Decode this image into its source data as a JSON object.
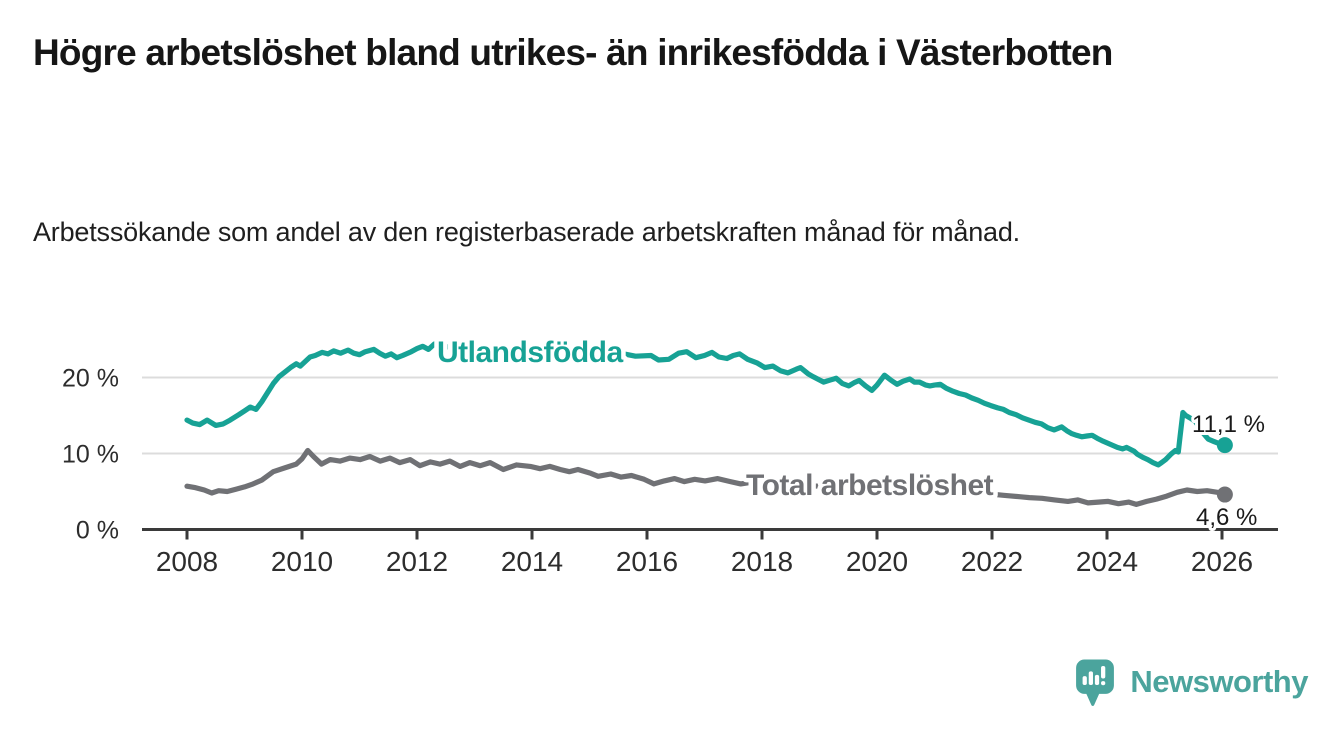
{
  "header": {
    "title": "Högre arbetslöshet bland utrikes- än inrikesfödda i Västerbotten",
    "subtitle": "Arbetssökande som andel av den registerbaserade arbetskraften månad för månad."
  },
  "footer": {
    "brand": "Newsworthy",
    "brand_color": "#4ba49d"
  },
  "chart_data": {
    "type": "line",
    "title": "Högre arbetslöshet bland utrikes- än inrikesfödda i Västerbotten",
    "subtitle": "Arbetssökande som andel av den registerbaserade arbetskraften månad för månad.",
    "x_axis": {
      "ticks": [
        2008,
        2010,
        2012,
        2014,
        2016,
        2018,
        2020,
        2022,
        2024,
        2026
      ],
      "range": [
        2007.2,
        2026.95
      ],
      "grid": false
    },
    "y_axis": {
      "unit": "%",
      "range": [
        0,
        26.5
      ],
      "ticks": [
        {
          "value": 0,
          "label": "0 %"
        },
        {
          "value": 10,
          "label": "10 %"
        },
        {
          "value": 20,
          "label": "20 %"
        }
      ],
      "grid": true
    },
    "legend_position": "inline-labels",
    "series": [
      {
        "name": "Utlandsfödda",
        "color": "#17a295",
        "end_label": "11,1 %",
        "end_value": 11.1,
        "points": [
          [
            2008.0,
            14.4
          ],
          [
            2008.1,
            14.0
          ],
          [
            2008.22,
            13.8
          ],
          [
            2008.35,
            14.4
          ],
          [
            2008.5,
            13.7
          ],
          [
            2008.63,
            13.9
          ],
          [
            2008.75,
            14.4
          ],
          [
            2008.9,
            15.1
          ],
          [
            2009.0,
            15.6
          ],
          [
            2009.1,
            16.1
          ],
          [
            2009.2,
            15.8
          ],
          [
            2009.3,
            16.8
          ],
          [
            2009.4,
            18.0
          ],
          [
            2009.5,
            19.2
          ],
          [
            2009.6,
            20.1
          ],
          [
            2009.7,
            20.7
          ],
          [
            2009.8,
            21.3
          ],
          [
            2009.9,
            21.8
          ],
          [
            2009.97,
            21.5
          ],
          [
            2010.14,
            22.7
          ],
          [
            2010.23,
            22.9
          ],
          [
            2010.35,
            23.3
          ],
          [
            2010.45,
            23.1
          ],
          [
            2010.55,
            23.5
          ],
          [
            2010.67,
            23.2
          ],
          [
            2010.8,
            23.6
          ],
          [
            2010.9,
            23.2
          ],
          [
            2011.0,
            23.0
          ],
          [
            2011.1,
            23.4
          ],
          [
            2011.25,
            23.7
          ],
          [
            2011.35,
            23.2
          ],
          [
            2011.45,
            22.8
          ],
          [
            2011.55,
            23.1
          ],
          [
            2011.65,
            22.6
          ],
          [
            2011.75,
            22.9
          ],
          [
            2011.9,
            23.4
          ],
          [
            2012.0,
            23.8
          ],
          [
            2012.1,
            24.1
          ],
          [
            2012.2,
            23.7
          ],
          [
            2012.3,
            24.4
          ],
          [
            2012.4,
            23.9
          ],
          [
            2012.6,
            24.1
          ],
          [
            2012.8,
            23.6
          ],
          [
            2013.0,
            23.8
          ],
          [
            2013.2,
            24.1
          ],
          [
            2013.4,
            23.6
          ],
          [
            2013.6,
            23.9
          ],
          [
            2013.8,
            23.5
          ],
          [
            2014.0,
            23.7
          ],
          [
            2014.2,
            23.3
          ],
          [
            2014.4,
            23.6
          ],
          [
            2014.6,
            23.2
          ],
          [
            2014.8,
            23.4
          ],
          [
            2015.0,
            23.1
          ],
          [
            2015.2,
            23.3
          ],
          [
            2015.4,
            22.9
          ],
          [
            2015.6,
            23.1
          ],
          [
            2015.8,
            22.8
          ],
          [
            2016.07,
            22.9
          ],
          [
            2016.2,
            22.3
          ],
          [
            2016.38,
            22.4
          ],
          [
            2016.55,
            23.2
          ],
          [
            2016.69,
            23.4
          ],
          [
            2016.85,
            22.6
          ],
          [
            2017.0,
            22.9
          ],
          [
            2017.13,
            23.3
          ],
          [
            2017.25,
            22.7
          ],
          [
            2017.39,
            22.5
          ],
          [
            2017.5,
            22.9
          ],
          [
            2017.61,
            23.1
          ],
          [
            2017.75,
            22.4
          ],
          [
            2017.92,
            21.9
          ],
          [
            2018.05,
            21.3
          ],
          [
            2018.19,
            21.5
          ],
          [
            2018.32,
            20.9
          ],
          [
            2018.45,
            20.6
          ],
          [
            2018.6,
            21.1
          ],
          [
            2018.67,
            21.3
          ],
          [
            2018.8,
            20.5
          ],
          [
            2018.89,
            20.1
          ],
          [
            2019.07,
            19.4
          ],
          [
            2019.2,
            19.7
          ],
          [
            2019.29,
            19.9
          ],
          [
            2019.4,
            19.2
          ],
          [
            2019.51,
            18.9
          ],
          [
            2019.6,
            19.3
          ],
          [
            2019.69,
            19.6
          ],
          [
            2019.8,
            18.9
          ],
          [
            2019.91,
            18.3
          ],
          [
            2020.0,
            19.0
          ],
          [
            2020.13,
            20.3
          ],
          [
            2020.25,
            19.6
          ],
          [
            2020.35,
            19.1
          ],
          [
            2020.45,
            19.5
          ],
          [
            2020.57,
            19.8
          ],
          [
            2020.65,
            19.4
          ],
          [
            2020.74,
            19.4
          ],
          [
            2020.85,
            19.0
          ],
          [
            2020.92,
            18.9
          ],
          [
            2021.0,
            19.0
          ],
          [
            2021.1,
            19.1
          ],
          [
            2021.2,
            18.6
          ],
          [
            2021.32,
            18.2
          ],
          [
            2021.43,
            17.9
          ],
          [
            2021.54,
            17.7
          ],
          [
            2021.65,
            17.3
          ],
          [
            2021.76,
            17.0
          ],
          [
            2021.87,
            16.6
          ],
          [
            2021.98,
            16.3
          ],
          [
            2022.1,
            16.0
          ],
          [
            2022.2,
            15.8
          ],
          [
            2022.3,
            15.4
          ],
          [
            2022.42,
            15.1
          ],
          [
            2022.53,
            14.7
          ],
          [
            2022.64,
            14.4
          ],
          [
            2022.75,
            14.1
          ],
          [
            2022.86,
            13.9
          ],
          [
            2022.97,
            13.4
          ],
          [
            2023.08,
            13.1
          ],
          [
            2023.21,
            13.5
          ],
          [
            2023.3,
            13.0
          ],
          [
            2023.39,
            12.6
          ],
          [
            2023.47,
            12.4
          ],
          [
            2023.56,
            12.2
          ],
          [
            2023.65,
            12.3
          ],
          [
            2023.74,
            12.4
          ],
          [
            2023.83,
            12.0
          ],
          [
            2023.91,
            11.7
          ],
          [
            2024.0,
            11.4
          ],
          [
            2024.09,
            11.1
          ],
          [
            2024.18,
            10.8
          ],
          [
            2024.27,
            10.6
          ],
          [
            2024.34,
            10.8
          ],
          [
            2024.47,
            10.3
          ],
          [
            2024.53,
            9.9
          ],
          [
            2024.62,
            9.5
          ],
          [
            2024.71,
            9.2
          ],
          [
            2024.8,
            8.8
          ],
          [
            2024.89,
            8.5
          ],
          [
            2024.95,
            8.8
          ],
          [
            2025.02,
            9.2
          ],
          [
            2025.11,
            9.9
          ],
          [
            2025.19,
            10.4
          ],
          [
            2025.24,
            10.2
          ],
          [
            2025.27,
            12.2
          ],
          [
            2025.32,
            15.4
          ],
          [
            2025.37,
            15.0
          ],
          [
            2025.46,
            14.6
          ],
          [
            2025.54,
            14.2
          ],
          [
            2025.6,
            13.5
          ],
          [
            2025.67,
            12.7
          ],
          [
            2025.76,
            11.9
          ],
          [
            2025.85,
            11.6
          ],
          [
            2025.95,
            11.3
          ],
          [
            2026.05,
            11.1
          ]
        ]
      },
      {
        "name": "Total arbetslöshet",
        "color": "#707175",
        "end_label": "4,6 %",
        "end_value": 4.6,
        "points": [
          [
            2008.0,
            5.7
          ],
          [
            2008.15,
            5.5
          ],
          [
            2008.3,
            5.2
          ],
          [
            2008.43,
            4.8
          ],
          [
            2008.55,
            5.1
          ],
          [
            2008.7,
            5.0
          ],
          [
            2008.85,
            5.3
          ],
          [
            2009.0,
            5.6
          ],
          [
            2009.15,
            6.0
          ],
          [
            2009.3,
            6.5
          ],
          [
            2009.5,
            7.6
          ],
          [
            2009.7,
            8.1
          ],
          [
            2009.9,
            8.6
          ],
          [
            2010.0,
            9.3
          ],
          [
            2010.1,
            10.4
          ],
          [
            2010.2,
            9.6
          ],
          [
            2010.34,
            8.6
          ],
          [
            2010.49,
            9.2
          ],
          [
            2010.66,
            9.0
          ],
          [
            2010.83,
            9.4
          ],
          [
            2011.01,
            9.2
          ],
          [
            2011.18,
            9.6
          ],
          [
            2011.36,
            9.0
          ],
          [
            2011.53,
            9.4
          ],
          [
            2011.7,
            8.8
          ],
          [
            2011.88,
            9.2
          ],
          [
            2012.05,
            8.4
          ],
          [
            2012.23,
            8.9
          ],
          [
            2012.4,
            8.6
          ],
          [
            2012.57,
            9.0
          ],
          [
            2012.75,
            8.3
          ],
          [
            2012.92,
            8.8
          ],
          [
            2013.1,
            8.4
          ],
          [
            2013.27,
            8.8
          ],
          [
            2013.5,
            7.9
          ],
          [
            2013.73,
            8.5
          ],
          [
            2013.97,
            8.3
          ],
          [
            2014.14,
            8.0
          ],
          [
            2014.31,
            8.3
          ],
          [
            2014.49,
            7.9
          ],
          [
            2014.65,
            7.6
          ],
          [
            2014.8,
            7.9
          ],
          [
            2015.02,
            7.4
          ],
          [
            2015.15,
            7.0
          ],
          [
            2015.37,
            7.3
          ],
          [
            2015.55,
            6.9
          ],
          [
            2015.73,
            7.1
          ],
          [
            2015.95,
            6.6
          ],
          [
            2016.12,
            6.0
          ],
          [
            2016.3,
            6.4
          ],
          [
            2016.48,
            6.7
          ],
          [
            2016.65,
            6.3
          ],
          [
            2016.83,
            6.6
          ],
          [
            2017.01,
            6.4
          ],
          [
            2017.23,
            6.7
          ],
          [
            2017.45,
            6.3
          ],
          [
            2017.63,
            6.0
          ],
          [
            2017.8,
            6.2
          ],
          [
            2018.0,
            6.0
          ],
          [
            2018.3,
            6.2
          ],
          [
            2018.6,
            5.8
          ],
          [
            2019.0,
            5.7
          ],
          [
            2019.4,
            5.5
          ],
          [
            2019.8,
            5.3
          ],
          [
            2020.1,
            5.8
          ],
          [
            2020.4,
            6.3
          ],
          [
            2020.7,
            6.0
          ],
          [
            2021.0,
            5.6
          ],
          [
            2021.4,
            5.2
          ],
          [
            2021.8,
            4.8
          ],
          [
            2022.2,
            4.5
          ],
          [
            2022.5,
            4.3
          ],
          [
            2022.65,
            4.2
          ],
          [
            2022.87,
            4.1
          ],
          [
            2023.09,
            3.9
          ],
          [
            2023.32,
            3.7
          ],
          [
            2023.49,
            3.9
          ],
          [
            2023.67,
            3.5
          ],
          [
            2023.85,
            3.6
          ],
          [
            2024.02,
            3.7
          ],
          [
            2024.2,
            3.4
          ],
          [
            2024.38,
            3.6
          ],
          [
            2024.51,
            3.3
          ],
          [
            2024.69,
            3.7
          ],
          [
            2024.86,
            4.0
          ],
          [
            2025.04,
            4.4
          ],
          [
            2025.22,
            4.9
          ],
          [
            2025.39,
            5.2
          ],
          [
            2025.57,
            5.0
          ],
          [
            2025.74,
            5.1
          ],
          [
            2025.92,
            4.9
          ],
          [
            2026.05,
            4.6
          ]
        ]
      }
    ]
  }
}
